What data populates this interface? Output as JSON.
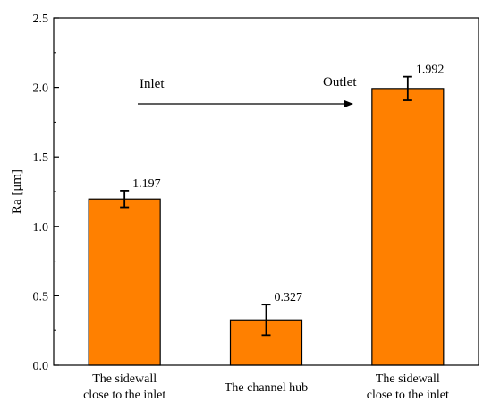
{
  "chart_data": {
    "type": "bar",
    "ylabel": "Ra [μm]",
    "xlabel": "",
    "ylim": [
      0,
      2.5
    ],
    "yticks": [
      "0.0",
      "0.5",
      "1.0",
      "1.5",
      "2.0",
      "2.5"
    ],
    "categories": [
      [
        "The sidewall",
        "close to the inlet"
      ],
      [
        "The channel hub"
      ],
      [
        "The sidewall",
        "close to the inlet"
      ]
    ],
    "values": [
      1.197,
      0.327,
      1.992
    ],
    "value_labels": [
      "1.197",
      "0.327",
      "1.992"
    ],
    "error_bars": [
      0.06,
      0.11,
      0.085
    ],
    "bar_color": "#ff8000",
    "grid": false,
    "annotations": {
      "arrow_start_label": "Inlet",
      "arrow_end_label": "Outlet"
    }
  }
}
